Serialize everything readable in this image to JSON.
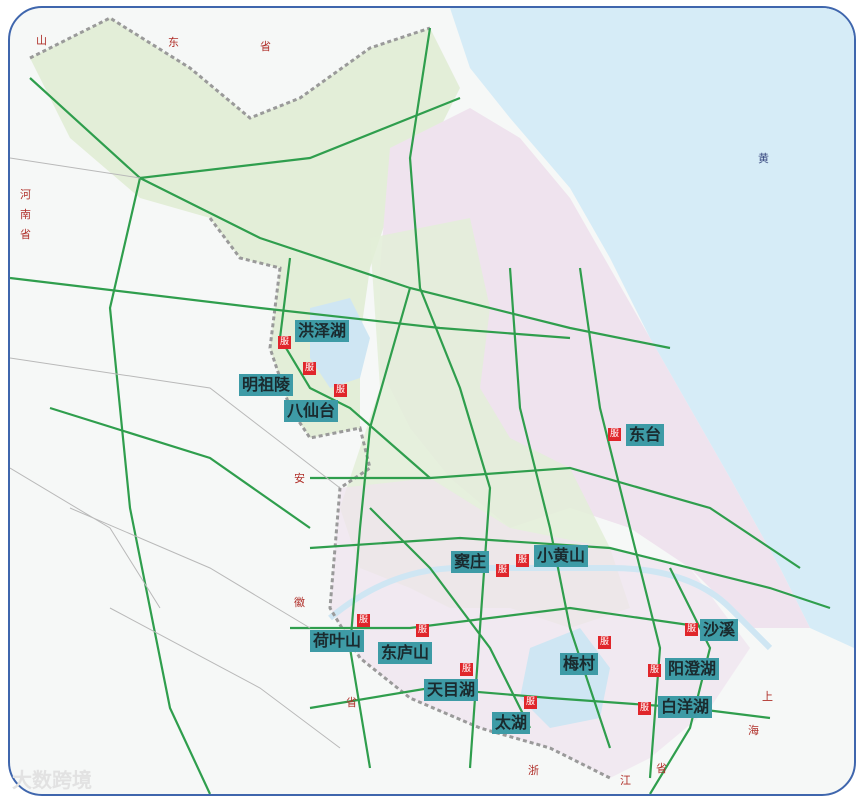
{
  "colors": {
    "sea": "#d6ecf7",
    "jiangsu_green": "#e3eed8",
    "jiangsu_pink": "#efe3ee",
    "road": "#2f9e4d",
    "label_bg": "#3e9ba6",
    "service_badge": "#e0262b",
    "frame": "#3f66ad"
  },
  "service_icon_text": "服",
  "province_labels": [
    {
      "id": "shandong-1",
      "text": "山"
    },
    {
      "id": "shandong-2",
      "text": "东"
    },
    {
      "id": "shandong-3",
      "text": "省"
    },
    {
      "id": "henan-1",
      "text": "河"
    },
    {
      "id": "henan-2",
      "text": "南"
    },
    {
      "id": "henan-3",
      "text": "省"
    },
    {
      "id": "huang",
      "text": "黄"
    },
    {
      "id": "anhui-1",
      "text": "安"
    },
    {
      "id": "anhui-2",
      "text": "徽"
    },
    {
      "id": "anhui-3",
      "text": "省"
    },
    {
      "id": "zhejiang-1",
      "text": "浙"
    },
    {
      "id": "zhejiang-2",
      "text": "江"
    },
    {
      "id": "zhejiang-3",
      "text": "省"
    },
    {
      "id": "shanghai-1",
      "text": "上"
    },
    {
      "id": "shanghai-2",
      "text": "海"
    }
  ],
  "places": [
    {
      "name": "洪泽湖"
    },
    {
      "name": "明祖陵"
    },
    {
      "name": "八仙台"
    },
    {
      "name": "东台"
    },
    {
      "name": "窦庄"
    },
    {
      "name": "小黄山"
    },
    {
      "name": "荷叶山"
    },
    {
      "name": "东庐山"
    },
    {
      "name": "天目湖"
    },
    {
      "name": "太湖"
    },
    {
      "name": "梅村"
    },
    {
      "name": "沙溪"
    },
    {
      "name": "阳澄湖"
    },
    {
      "name": "白洋湖"
    }
  ],
  "watermark": "大数跨境"
}
